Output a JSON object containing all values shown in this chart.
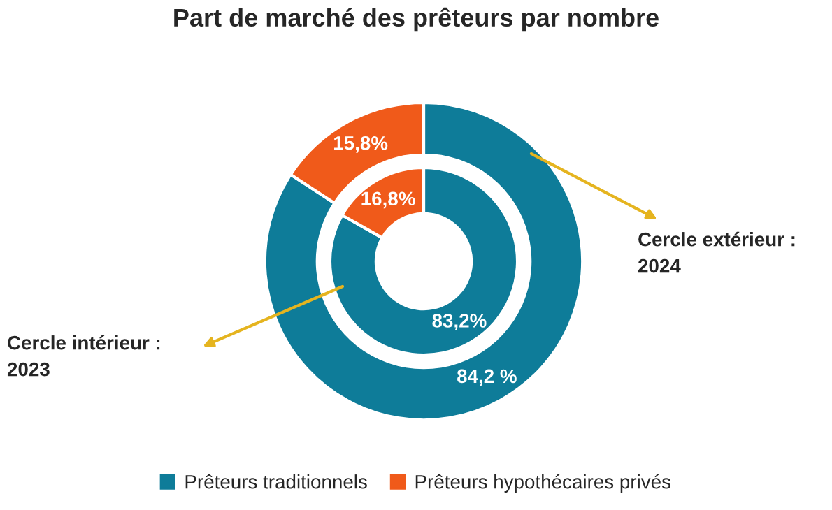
{
  "chart_data": {
    "type": "donut",
    "title": "Part de marché des prêteurs par nombre",
    "categories": [
      "Prêteurs traditionnels",
      "Prêteurs hypothécaires privés"
    ],
    "colors": [
      "#0e7c99",
      "#f05a1a"
    ],
    "series": [
      {
        "values": [
          83.2,
          16.8
        ],
        "value_labels": [
          "83,2%",
          "16,8%"
        ]
      },
      {
        "values": [
          84.2,
          15.8
        ],
        "value_labels": [
          "84,2 %",
          "15,8%"
        ]
      }
    ],
    "legend": "bottom",
    "annotations": [
      "Cercle intérieur :\n2023",
      "Cercle extérieur :\n2024"
    ]
  }
}
